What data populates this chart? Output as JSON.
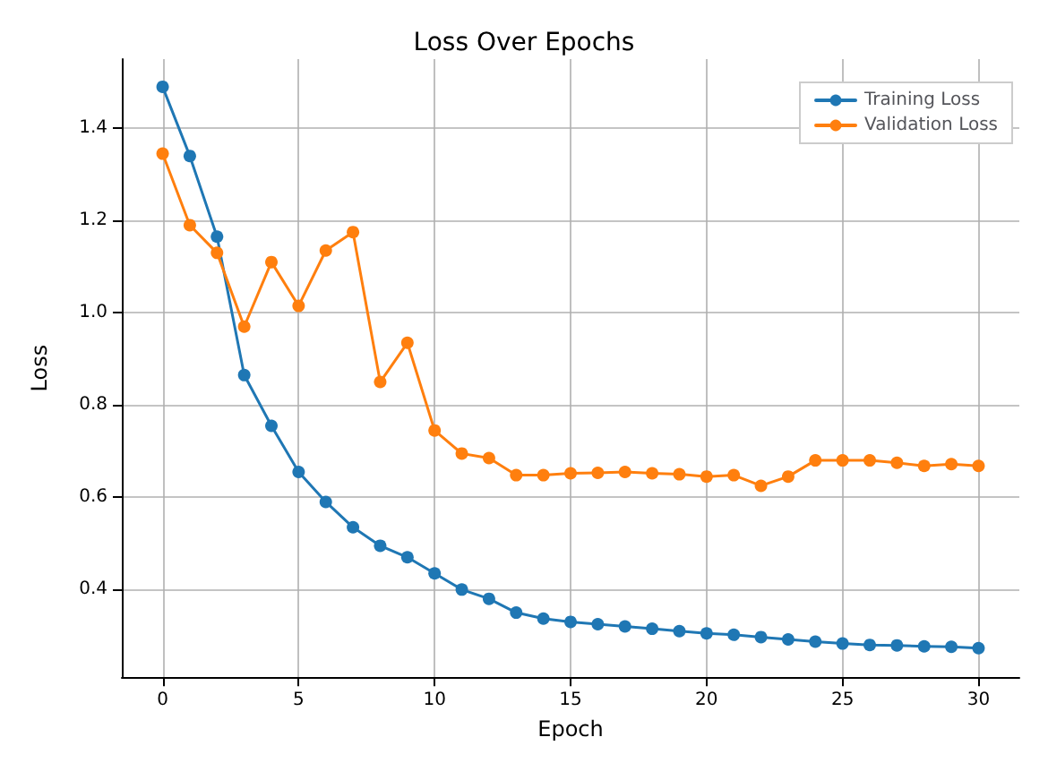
{
  "chart_data": {
    "type": "line",
    "title": "Loss Over Epochs",
    "xlabel": "Epoch",
    "ylabel": "Loss",
    "x": [
      0,
      1,
      2,
      3,
      4,
      5,
      6,
      7,
      8,
      9,
      10,
      11,
      12,
      13,
      14,
      15,
      16,
      17,
      18,
      19,
      20,
      21,
      22,
      23,
      24,
      25,
      26,
      27,
      28,
      29,
      30
    ],
    "series": [
      {
        "name": "Training Loss",
        "color": "#1f77b4",
        "values": [
          1.49,
          1.34,
          1.165,
          0.865,
          0.755,
          0.655,
          0.59,
          0.535,
          0.495,
          0.47,
          0.435,
          0.4,
          0.38,
          0.35,
          0.337,
          0.33,
          0.325,
          0.32,
          0.315,
          0.31,
          0.305,
          0.302,
          0.297,
          0.292,
          0.287,
          0.283,
          0.28,
          0.279,
          0.277,
          0.276,
          0.273
        ]
      },
      {
        "name": "Validation Loss",
        "color": "#ff7f0e",
        "values": [
          1.345,
          1.19,
          1.13,
          0.97,
          1.11,
          1.015,
          1.135,
          1.175,
          0.85,
          0.935,
          0.745,
          0.695,
          0.685,
          0.648,
          0.648,
          0.652,
          0.653,
          0.655,
          0.652,
          0.65,
          0.645,
          0.648,
          0.625,
          0.645,
          0.68,
          0.68,
          0.68,
          0.675,
          0.668,
          0.672,
          0.668
        ]
      }
    ],
    "xlim": [
      -1.5,
      31.5
    ],
    "xticks": [
      0,
      5,
      10,
      15,
      20,
      25,
      30
    ],
    "ylim": [
      0.21,
      1.55
    ],
    "yticks": [
      0.4,
      0.6,
      0.8,
      {
        "value": 1,
        "label": "1.0"
      },
      1.2,
      1.4
    ],
    "grid": true,
    "legend": "top right",
    "marker": "circle",
    "line_style": "solid"
  }
}
